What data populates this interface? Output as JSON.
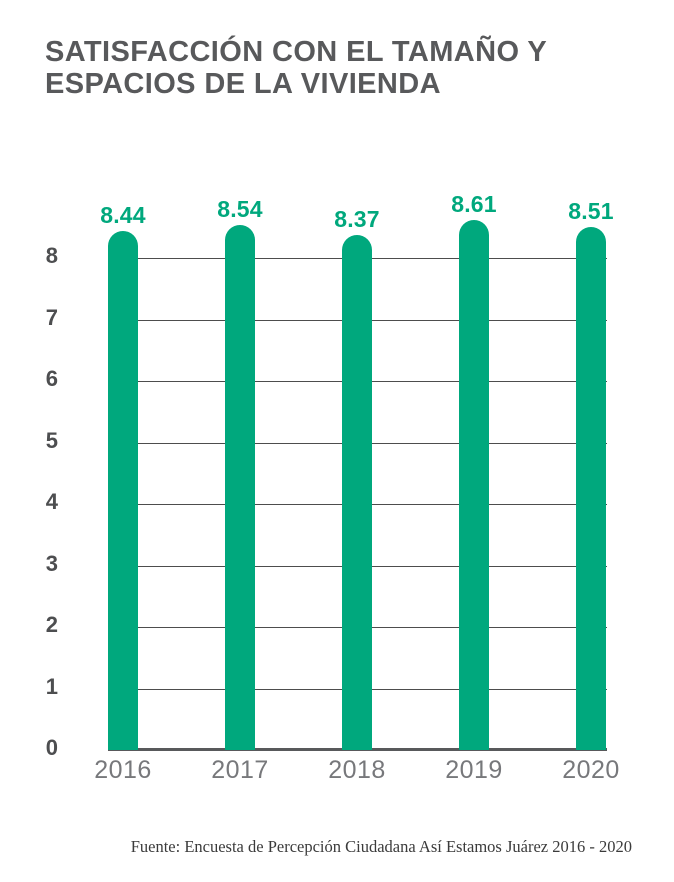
{
  "title": {
    "line1": "SATISFACCIÓN CON EL TAMAÑO Y",
    "line2": "ESPACIOS DE LA VIVIENDA"
  },
  "source": "Fuente: Encuesta de Percepción Ciudadana Así Estamos Juárez 2016 - 2020",
  "colors": {
    "bar": "#00a87d",
    "title": "#58595b",
    "axis_labels": "#4d4e50",
    "year_labels": "#77787b",
    "gridline": "#4d4d4d",
    "baseline": "#58595b",
    "source_text": "#3b3b3b"
  },
  "chart_data": {
    "type": "bar",
    "title": "SATISFACCIÓN CON EL TAMAÑO Y ESPACIOS DE LA VIVIENDA",
    "categories": [
      "2016",
      "2017",
      "2018",
      "2019",
      "2020"
    ],
    "values": [
      8.44,
      8.54,
      8.37,
      8.61,
      8.51
    ],
    "value_labels": [
      "8.44",
      "8.54",
      "8.37",
      "8.61",
      "8.51"
    ],
    "xlabel": "",
    "ylabel": "",
    "ylim": [
      0,
      8.8
    ],
    "yticks": [
      0,
      1,
      2,
      3,
      4,
      5,
      6,
      7,
      8
    ],
    "grid": true,
    "legend": false,
    "bar_color": "#00a87d",
    "value_label_color": "#00a87d"
  }
}
